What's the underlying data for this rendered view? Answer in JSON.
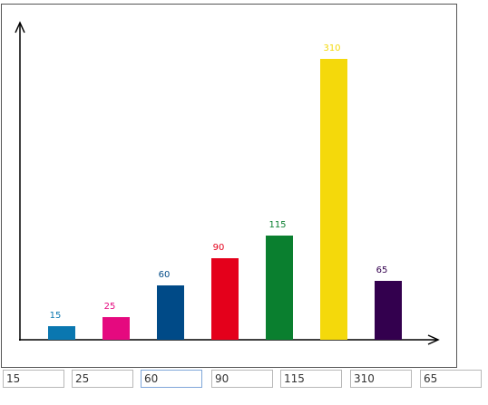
{
  "chart_data": {
    "type": "bar",
    "values": [
      15,
      25,
      60,
      90,
      115,
      310,
      65
    ],
    "colors": [
      "#0a77b0",
      "#e5097f",
      "#004a87",
      "#e4001b",
      "#0a7f2f",
      "#f4d90b",
      "#33004e"
    ]
  }
}
